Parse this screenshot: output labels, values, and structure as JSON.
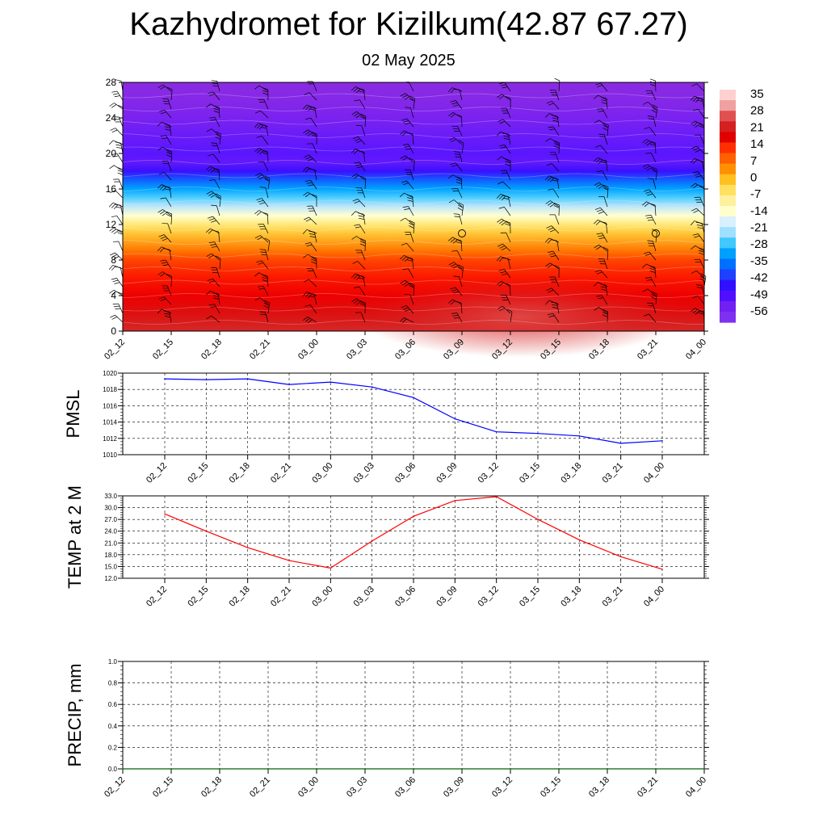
{
  "title": "Kazhydromet for Kizilkum(42.87 67.27)",
  "subtitle": "02 May 2025",
  "colors": {
    "pmsl_line": "#0000ff",
    "temp_line": "#ff0000",
    "precip_line": "#006400",
    "gridline": "#000000"
  },
  "chart_data": [
    {
      "type": "heatmap",
      "title": "",
      "xlabel": "",
      "ylabel": "",
      "x_ticks": [
        "02_12",
        "02_15",
        "02_18",
        "02_21",
        "03_00",
        "03_03",
        "03_06",
        "03_09",
        "03_12",
        "03_15",
        "03_18",
        "03_21",
        "04_00"
      ],
      "y_ticks": [
        0,
        4,
        8,
        12,
        16,
        20,
        24,
        28
      ],
      "ylim": [
        0,
        28
      ],
      "colorbar_labels": [
        "35",
        "28",
        "21",
        "14",
        "7",
        "0",
        "-7",
        "-14",
        "-21",
        "-28",
        "-35",
        "-42",
        "-49",
        "-56"
      ],
      "colorbar_colors": [
        "#ffd0d0",
        "#f0a0a0",
        "#e05050",
        "#d42020",
        "#e00000",
        "#ff3000",
        "#ff6000",
        "#ff9000",
        "#ffc020",
        "#ffe060",
        "#fff0a0",
        "#ffffcc",
        "#d8f0ff",
        "#a0e0ff",
        "#40c8ff",
        "#00a0ff",
        "#0070ff",
        "#2040ff",
        "#3010ff",
        "#5010ff",
        "#7020f0",
        "#8030f0"
      ],
      "vertical_profile": [
        {
          "height": 0,
          "temp": 24
        },
        {
          "height": 2,
          "temp": 20
        },
        {
          "height": 4,
          "temp": 16
        },
        {
          "height": 6,
          "temp": 13
        },
        {
          "height": 8,
          "temp": 9
        },
        {
          "height": 9,
          "temp": 5
        },
        {
          "height": 10,
          "temp": 1
        },
        {
          "height": 11,
          "temp": -3
        },
        {
          "height": 12,
          "temp": -7
        },
        {
          "height": 13,
          "temp": -12
        },
        {
          "height": 14,
          "temp": -20
        },
        {
          "height": 15,
          "temp": -28
        },
        {
          "height": 16,
          "temp": -36
        },
        {
          "height": 17,
          "temp": -44
        },
        {
          "height": 18,
          "temp": -52
        },
        {
          "height": 19,
          "temp": -57
        },
        {
          "height": 20,
          "temp": -56
        },
        {
          "height": 22,
          "temp": -58
        },
        {
          "height": 24,
          "temp": -60
        },
        {
          "height": 26,
          "temp": -64
        },
        {
          "height": 28,
          "temp": -66
        }
      ],
      "calm_markers": [
        {
          "x": "03_09",
          "height": 11
        },
        {
          "x": "03_21",
          "height": 11
        }
      ]
    },
    {
      "type": "line",
      "ylabel": "PMSL",
      "x_ticks": [
        "02_12",
        "02_15",
        "02_18",
        "02_21",
        "03_00",
        "03_03",
        "03_06",
        "03_09",
        "03_12",
        "03_15",
        "03_18",
        "03_21",
        "04_00"
      ],
      "ylim": [
        1010,
        1020
      ],
      "y_ticks": [
        "1010",
        "1012",
        "1014",
        "1016",
        "1018",
        "1020"
      ],
      "series": [
        {
          "values": [
            1019.3,
            1019.2,
            1019.3,
            1018.6,
            1018.9,
            1018.3,
            1017.0,
            1014.4,
            1012.8,
            1012.6,
            1012.3,
            1011.4,
            1011.7
          ]
        }
      ]
    },
    {
      "type": "line",
      "ylabel": "TEMP at 2 M",
      "x_ticks": [
        "02_12",
        "02_15",
        "02_18",
        "02_21",
        "03_00",
        "03_03",
        "03_06",
        "03_09",
        "03_12",
        "03_15",
        "03_18",
        "03_21",
        "04_00"
      ],
      "ylim": [
        12,
        33
      ],
      "y_ticks": [
        "12.0",
        "15.0",
        "18.0",
        "21.0",
        "24.0",
        "27.0",
        "30.0",
        "33.0"
      ],
      "series": [
        {
          "values": [
            28.4,
            24.0,
            19.8,
            16.5,
            14.6,
            21.5,
            27.8,
            31.8,
            32.8,
            27.0,
            21.8,
            17.5,
            14.3
          ]
        }
      ]
    },
    {
      "type": "line",
      "ylabel": "PRECIP, mm",
      "x_ticks": [
        "02_12",
        "02_15",
        "02_18",
        "02_21",
        "03_00",
        "03_03",
        "03_06",
        "03_09",
        "03_12",
        "03_15",
        "03_18",
        "03_21",
        "04_00"
      ],
      "ylim": [
        0,
        1
      ],
      "y_ticks": [
        "0.0",
        "0.2",
        "0.4",
        "0.6",
        "0.8",
        "1.0"
      ],
      "series": [
        {
          "values": [
            0,
            0,
            0,
            0,
            0,
            0,
            0,
            0,
            0,
            0,
            0,
            0,
            0
          ]
        }
      ]
    }
  ]
}
